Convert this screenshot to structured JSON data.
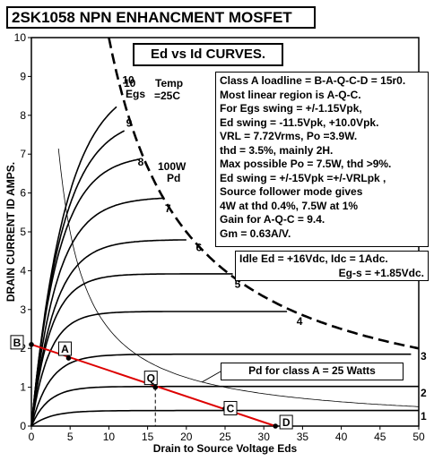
{
  "title": "2SK1058 NPN ENHANCMENT MOSFET",
  "curves_title": "Ed vs Id CURVES.",
  "notes": [
    "Class A loadline = B-A-Q-C-D = 15r0.",
    "Most linear region is A-Q-C.",
    "For Egs swing = +/-1.15Vpk,",
    "Ed swing = -11.5Vpk, +10.0Vpk.",
    "VRL = 7.72Vrms, Po =3.9W.",
    "thd = 3.5%, mainly 2H.",
    "Max possible Po = 7.5W, thd >9%.",
    "Ed swing = +/-15Vpk =+/-VRLpk ,",
    "Source follower mode gives",
    "4W at thd 0.4%, 7.5W at 1%",
    "Gain for A-Q-C = 9.4.",
    "Gm = 0.63A/V."
  ],
  "idle": {
    "line1": "Idle Ed = +16Vdc, Idc = 1Adc.",
    "line2": "Eg-s = +1.85Vdc."
  },
  "annotations": {
    "egs": "Egs",
    "ten": "10",
    "temp1": "Temp",
    "temp2": "=25C",
    "pd1": "100W",
    "pd2": "Pd",
    "pd_class": "Pd for class A = 25 Watts"
  },
  "chart_data": {
    "type": "line",
    "xlabel": "Drain to Source Voltage Eds",
    "ylabel": "DRAIN CURRENT ID AMPS.",
    "xlim": [
      0,
      50
    ],
    "ylim": [
      0,
      10
    ],
    "x_ticks": [
      0,
      5,
      10,
      15,
      20,
      25,
      30,
      35,
      40,
      45,
      50
    ],
    "y_ticks": [
      0,
      1,
      2,
      3,
      4,
      5,
      6,
      7,
      8,
      9,
      10
    ],
    "grid": false,
    "colors": {
      "curves": "#000000",
      "loadline": "#dd0000",
      "pd_limit": "#000000"
    },
    "series": [
      {
        "label": "1",
        "label_at": [
          50,
          0.25
        ],
        "isat": 0.4,
        "k": 2.5,
        "xmax": 50
      },
      {
        "label": "2",
        "label_at": [
          50,
          0.85
        ],
        "isat": 1.02,
        "k": 2.2,
        "xmax": 50
      },
      {
        "label": "3",
        "label_at": [
          50,
          1.8
        ],
        "isat": 1.85,
        "k": 2.4,
        "xmax": 49
      },
      {
        "label": "4",
        "label_at": [
          34,
          2.7
        ],
        "isat": 2.95,
        "k": 2.3,
        "xmax": 33
      },
      {
        "label": "5",
        "label_at": [
          26,
          3.65
        ],
        "isat": 3.92,
        "k": 2.5,
        "xmax": 26
      },
      {
        "label": "6",
        "label_at": [
          21,
          4.6
        ],
        "isat": 4.8,
        "k": 3,
        "xmax": 20
      },
      {
        "label": "7",
        "label_at": [
          17,
          5.6
        ],
        "isat": 5.9,
        "k": 3.3,
        "xmax": 17
      },
      {
        "label": "8",
        "label_at": [
          13.5,
          6.8
        ],
        "isat": 7.0,
        "k": 3.5,
        "xmax": 14
      },
      {
        "label": "9",
        "label_at": [
          12,
          7.8
        ],
        "isat": 8.0,
        "k": 4,
        "xmax": 12
      },
      {
        "label": "10",
        "label_at": [
          11.5,
          8.9
        ],
        "isat": 9.0,
        "k": 4.5,
        "xmax": 11
      }
    ],
    "pd_limit_100w": {
      "watts": 100,
      "x_from": 10,
      "x_to": 50,
      "dashed": true
    },
    "pd_class_a": {
      "watts": 25,
      "x_from": 3.5,
      "x_to": 50
    },
    "loadline": {
      "from": [
        0,
        2.1
      ],
      "to": [
        31.5,
        0
      ]
    },
    "points": [
      {
        "label": "B",
        "x": 0,
        "y": 2.1
      },
      {
        "label": "A",
        "x": 4.8,
        "y": 1.75
      },
      {
        "label": "Q",
        "x": 16,
        "y": 1.0
      },
      {
        "label": "C",
        "x": 25,
        "y": 0.45
      },
      {
        "label": "D",
        "x": 31.5,
        "y": 0
      }
    ]
  }
}
